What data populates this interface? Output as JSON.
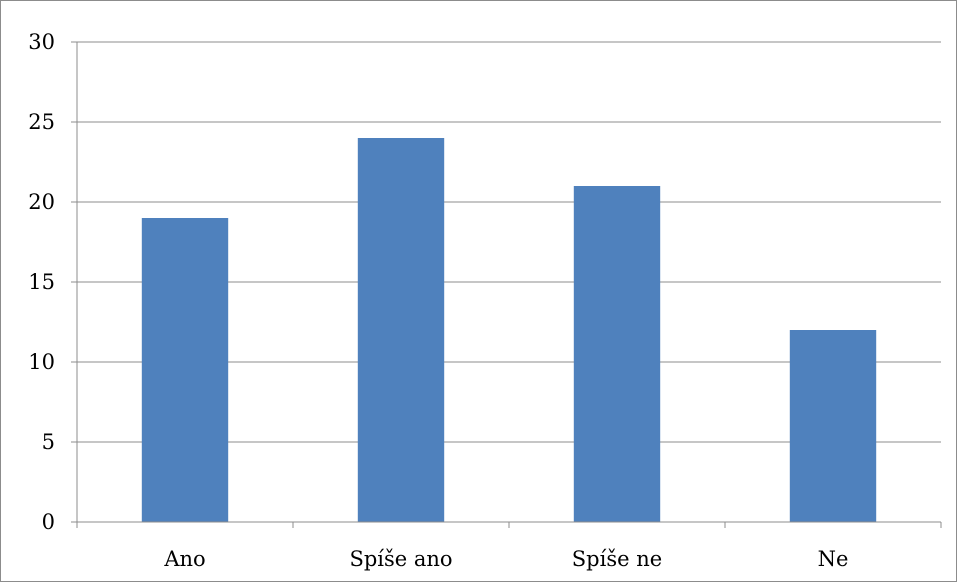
{
  "chart_data": {
    "type": "bar",
    "title": "",
    "xlabel": "",
    "ylabel": "",
    "categories": [
      "Ano",
      "Spíše ano",
      "Spíše ne",
      "Ne"
    ],
    "series": [
      {
        "values": [
          19,
          24,
          21,
          12
        ],
        "color": "#4f81bd"
      }
    ],
    "ylim": [
      0,
      30
    ],
    "yticks": [
      0,
      5,
      10,
      15,
      20,
      25,
      30
    ],
    "grid": true,
    "legend": "none"
  }
}
